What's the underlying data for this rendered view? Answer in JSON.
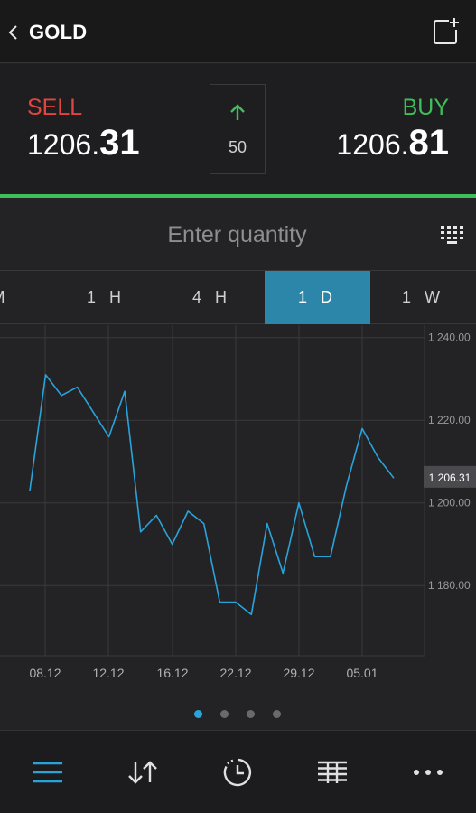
{
  "header": {
    "title": "GOLD"
  },
  "quote": {
    "sell_label": "SELL",
    "sell_price_prefix": "1206.",
    "sell_price_big": "31",
    "buy_label": "BUY",
    "buy_price_prefix": "1206.",
    "buy_price_big": "81",
    "spread": "50",
    "direction": "up"
  },
  "quantity": {
    "placeholder": "Enter quantity",
    "value": ""
  },
  "tabs": [
    {
      "label": "M",
      "active": false
    },
    {
      "label": "1 H",
      "active": false
    },
    {
      "label": "4 H",
      "active": false
    },
    {
      "label": "1 D",
      "active": true
    },
    {
      "label": "1 W",
      "active": false
    }
  ],
  "pager": {
    "count": 4,
    "active_index": 0
  },
  "colors": {
    "sell": "#e0463f",
    "buy": "#3fbf5a",
    "accent": "#2aa3db",
    "active_tab": "#2b86a9"
  },
  "chart_data": {
    "type": "line",
    "x_tick_labels": [
      "08.12",
      "12.12",
      "16.12",
      "22.12",
      "29.12",
      "05.01"
    ],
    "y_tick_labels": [
      "1 240.00",
      "1 220.00",
      "1 200.00",
      "1 180.00"
    ],
    "y_ticks": [
      1240,
      1220,
      1200,
      1180
    ],
    "ylim": [
      1163,
      1243
    ],
    "current_value": 1206.31,
    "current_label": "1 206.31",
    "grid": true,
    "series": [
      {
        "values": [
          1203,
          1231,
          1226,
          1228,
          1222,
          1216,
          1227,
          1193,
          1197,
          1190,
          1198,
          1195,
          1176,
          1176,
          1173,
          1195,
          1183,
          1200,
          1187,
          1187,
          1204,
          1218,
          1211,
          1206
        ]
      }
    ]
  }
}
